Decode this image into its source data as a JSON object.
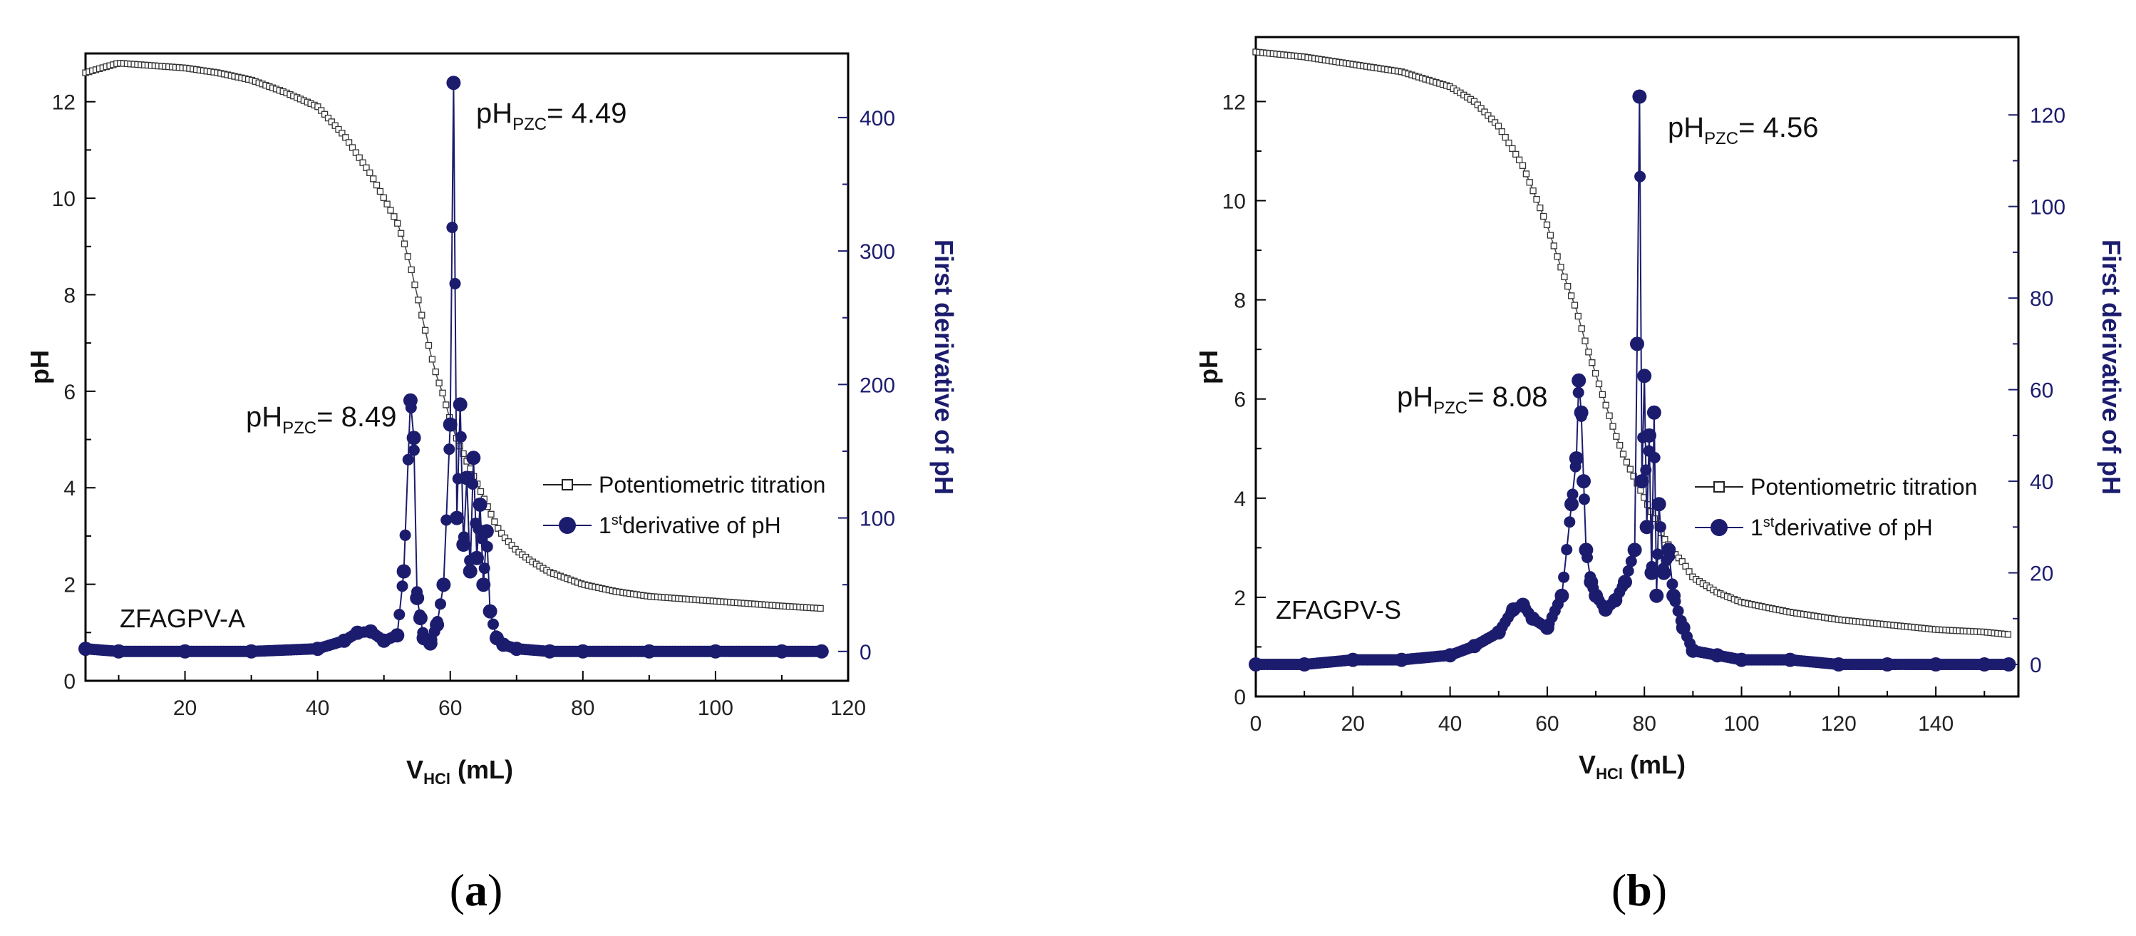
{
  "chart_data": [
    {
      "panel_label": "(a)",
      "panel_letter": "a",
      "type": "line",
      "sample": "ZFAGPV-A",
      "xlabel": "V",
      "xlabel_sub": "HCl",
      "xlabel_unit": " (mL)",
      "ylabel": "pH",
      "y2label": "First derivative of pH",
      "xlim": [
        5,
        120
      ],
      "ylim": [
        0,
        13
      ],
      "y2lim": [
        -22,
        448
      ],
      "xticks": [
        20,
        40,
        60,
        80,
        100,
        120
      ],
      "yticks": [
        0,
        2,
        4,
        6,
        8,
        10,
        12
      ],
      "y2ticks": [
        0,
        100,
        200,
        300,
        400
      ],
      "legend": [
        "Potentiometric titration",
        "1st derivative of pH"
      ],
      "legend_sup": "st",
      "annotations": [
        {
          "prefix": "pH",
          "sub": "PZC",
          "text": "= 8.49"
        },
        {
          "prefix": "pH",
          "sub": "PZC",
          "text": "= 4.49"
        }
      ],
      "series": [
        {
          "name": "Potentiometric titration",
          "axis": "left",
          "x": [
            5,
            10,
            15,
            20,
            25,
            30,
            35,
            40,
            42,
            44,
            46,
            48,
            50,
            52,
            53,
            54,
            55,
            56,
            57,
            58,
            59,
            60,
            61,
            62,
            63,
            64,
            65,
            66,
            67,
            68,
            70,
            72,
            75,
            80,
            85,
            90,
            95,
            100,
            105,
            110,
            116
          ],
          "y": [
            12.6,
            12.8,
            12.75,
            12.7,
            12.6,
            12.45,
            12.2,
            11.9,
            11.6,
            11.3,
            10.9,
            10.5,
            10.0,
            9.5,
            9.1,
            8.6,
            8.0,
            7.4,
            6.8,
            6.3,
            5.9,
            5.4,
            5.0,
            4.7,
            4.4,
            4.1,
            3.8,
            3.5,
            3.2,
            3.0,
            2.7,
            2.5,
            2.25,
            2.0,
            1.85,
            1.75,
            1.7,
            1.65,
            1.6,
            1.55,
            1.5
          ]
        },
        {
          "name": "1st derivative of pH",
          "axis": "right",
          "x": [
            5,
            10,
            20,
            30,
            40,
            44,
            46,
            48,
            50,
            52,
            53,
            54,
            54.5,
            55,
            55.5,
            56,
            57,
            58,
            59,
            60,
            60.5,
            61,
            61.5,
            62,
            62.5,
            63,
            63.5,
            64,
            64.5,
            65,
            65.5,
            66,
            67,
            68,
            70,
            75,
            80,
            90,
            100,
            110,
            116
          ],
          "y": [
            2,
            0,
            0,
            0,
            2,
            8,
            14,
            15,
            8,
            12,
            60,
            188,
            160,
            40,
            25,
            10,
            6,
            20,
            50,
            170,
            426,
            100,
            185,
            80,
            130,
            60,
            145,
            70,
            110,
            50,
            90,
            30,
            10,
            5,
            2,
            0,
            0,
            0,
            0,
            0,
            0
          ]
        }
      ]
    },
    {
      "panel_label": "(b)",
      "panel_letter": "b",
      "type": "line",
      "sample": "ZFAGPV-S",
      "xlabel": "V",
      "xlabel_sub": "HCl",
      "xlabel_unit": " (mL)",
      "ylabel": "pH",
      "y2label": "First derivative of pH",
      "xlim": [
        0,
        157
      ],
      "ylim": [
        0,
        13.3
      ],
      "y2lim": [
        -7,
        137
      ],
      "xticks": [
        0,
        20,
        40,
        60,
        80,
        100,
        120,
        140
      ],
      "yticks": [
        0,
        2,
        4,
        6,
        8,
        10,
        12
      ],
      "y2ticks": [
        0,
        20,
        40,
        60,
        80,
        100,
        120
      ],
      "legend": [
        "Potentiometric titration",
        "1st derivative of pH"
      ],
      "legend_sup": "st",
      "annotations": [
        {
          "prefix": "pH",
          "sub": "PZC",
          "text": "= 8.08"
        },
        {
          "prefix": "pH",
          "sub": "PZC",
          "text": "= 4.56"
        }
      ],
      "series": [
        {
          "name": "Potentiometric titration",
          "axis": "left",
          "x": [
            0,
            5,
            10,
            20,
            30,
            40,
            45,
            50,
            55,
            60,
            63,
            66,
            68,
            70,
            72,
            74,
            76,
            78,
            80,
            82,
            84,
            86,
            88,
            90,
            95,
            100,
            110,
            120,
            130,
            140,
            150,
            155
          ],
          "y": [
            13.0,
            12.95,
            12.9,
            12.75,
            12.6,
            12.3,
            12.0,
            11.5,
            10.7,
            9.5,
            8.6,
            7.8,
            7.1,
            6.5,
            5.9,
            5.3,
            4.8,
            4.4,
            4.0,
            3.6,
            3.2,
            2.9,
            2.7,
            2.4,
            2.1,
            1.9,
            1.7,
            1.55,
            1.45,
            1.35,
            1.3,
            1.25
          ]
        },
        {
          "name": "1st derivative of pH",
          "axis": "right",
          "x": [
            0,
            10,
            20,
            30,
            40,
            45,
            50,
            53,
            55,
            57,
            60,
            63,
            65,
            66,
            66.5,
            67,
            67.5,
            68,
            69,
            70,
            72,
            74,
            76,
            78,
            78.5,
            79,
            79.5,
            80,
            80.5,
            81,
            81.5,
            82,
            82.5,
            83,
            84,
            85,
            86,
            88,
            90,
            95,
            100,
            110,
            120,
            130,
            140,
            150,
            155
          ],
          "y": [
            0,
            0,
            1,
            1,
            2,
            4,
            7,
            12,
            13,
            10,
            8,
            15,
            35,
            45,
            62,
            55,
            40,
            25,
            18,
            15,
            12,
            14,
            18,
            25,
            70,
            124,
            40,
            63,
            30,
            50,
            20,
            55,
            15,
            35,
            20,
            25,
            15,
            8,
            3,
            2,
            1,
            1,
            0,
            0,
            0,
            0,
            0
          ]
        }
      ]
    }
  ]
}
